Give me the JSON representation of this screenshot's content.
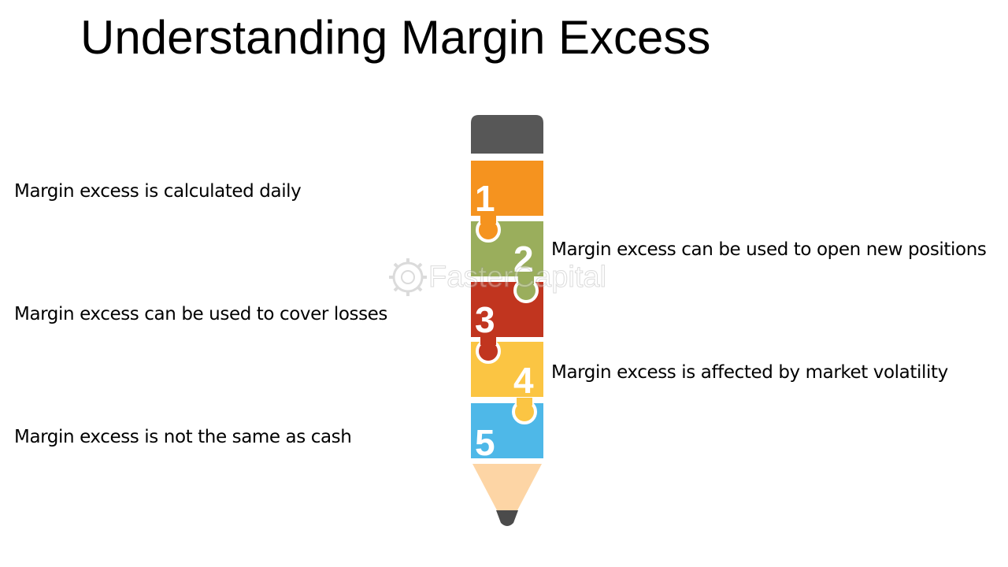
{
  "title": "Understanding Margin Excess",
  "steps": [
    {
      "number": "1",
      "label": "Margin excess is calculated daily",
      "color": "#f5931f"
    },
    {
      "number": "2",
      "label": "Margin excess can be used to open new positions",
      "color": "#9aae5c"
    },
    {
      "number": "3",
      "label": "Margin excess can be used to cover losses",
      "color": "#c1351f"
    },
    {
      "number": "4",
      "label": "Margin excess is affected by market volatility",
      "color": "#fbc543"
    },
    {
      "number": "5",
      "label": "Margin excess is not the same as cash",
      "color": "#4eb8e8"
    }
  ],
  "pencil": {
    "eraser_color": "#575757",
    "wood_color": "#fdd5a5",
    "lead_color": "#4b4b4b"
  },
  "watermark": {
    "text": "FasterCapital",
    "icon": "gear-logo-icon"
  }
}
